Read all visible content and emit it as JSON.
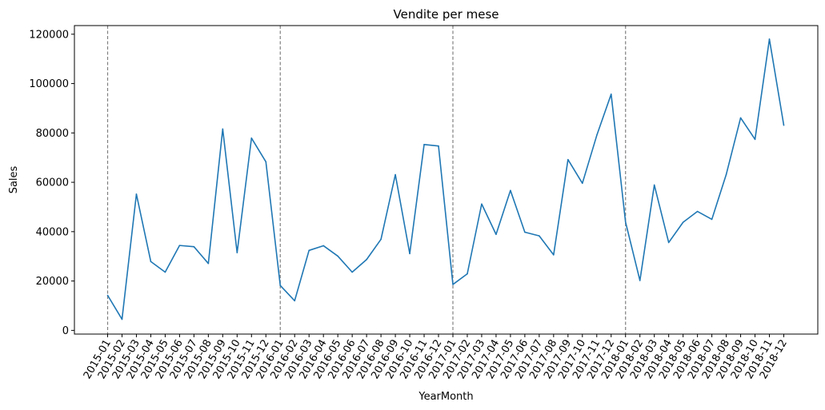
{
  "chart_data": {
    "type": "line",
    "title": "Vendite per mese",
    "xlabel": "YearMonth",
    "ylabel": "Sales",
    "ylim": [
      -1500,
      123500
    ],
    "y_ticks": [
      0,
      20000,
      40000,
      60000,
      80000,
      100000,
      120000
    ],
    "year_separators": [
      "2015-01",
      "2016-01",
      "2017-01",
      "2018-01"
    ],
    "colors": {
      "line": "#1f77b4",
      "separator": "#808080"
    },
    "grid": false,
    "x": [
      "2015-01",
      "2015-02",
      "2015-03",
      "2015-04",
      "2015-05",
      "2015-06",
      "2015-07",
      "2015-08",
      "2015-09",
      "2015-10",
      "2015-11",
      "2015-12",
      "2016-01",
      "2016-02",
      "2016-03",
      "2016-04",
      "2016-05",
      "2016-06",
      "2016-07",
      "2016-08",
      "2016-09",
      "2016-10",
      "2016-11",
      "2016-12",
      "2017-01",
      "2017-02",
      "2017-03",
      "2017-04",
      "2017-05",
      "2017-06",
      "2017-07",
      "2017-08",
      "2017-09",
      "2017-10",
      "2017-11",
      "2017-12",
      "2018-01",
      "2018-02",
      "2018-03",
      "2018-04",
      "2018-05",
      "2018-06",
      "2018-07",
      "2018-08",
      "2018-09",
      "2018-10",
      "2018-11",
      "2018-12"
    ],
    "series": [
      {
        "values": [
          14200,
          4500,
          55200,
          27900,
          23600,
          34400,
          33900,
          27100,
          81600,
          31500,
          77900,
          68300,
          18200,
          12000,
          32400,
          34300,
          30100,
          23600,
          28700,
          36900,
          63100,
          31100,
          75300,
          74700,
          18600,
          22900,
          51200,
          38900,
          56700,
          39800,
          38300,
          30600,
          69200,
          59600,
          79000,
          95700,
          43900,
          20200,
          58900,
          35600,
          43800,
          48200,
          45000,
          63200,
          86100,
          77400,
          118000,
          83100
        ]
      }
    ]
  }
}
